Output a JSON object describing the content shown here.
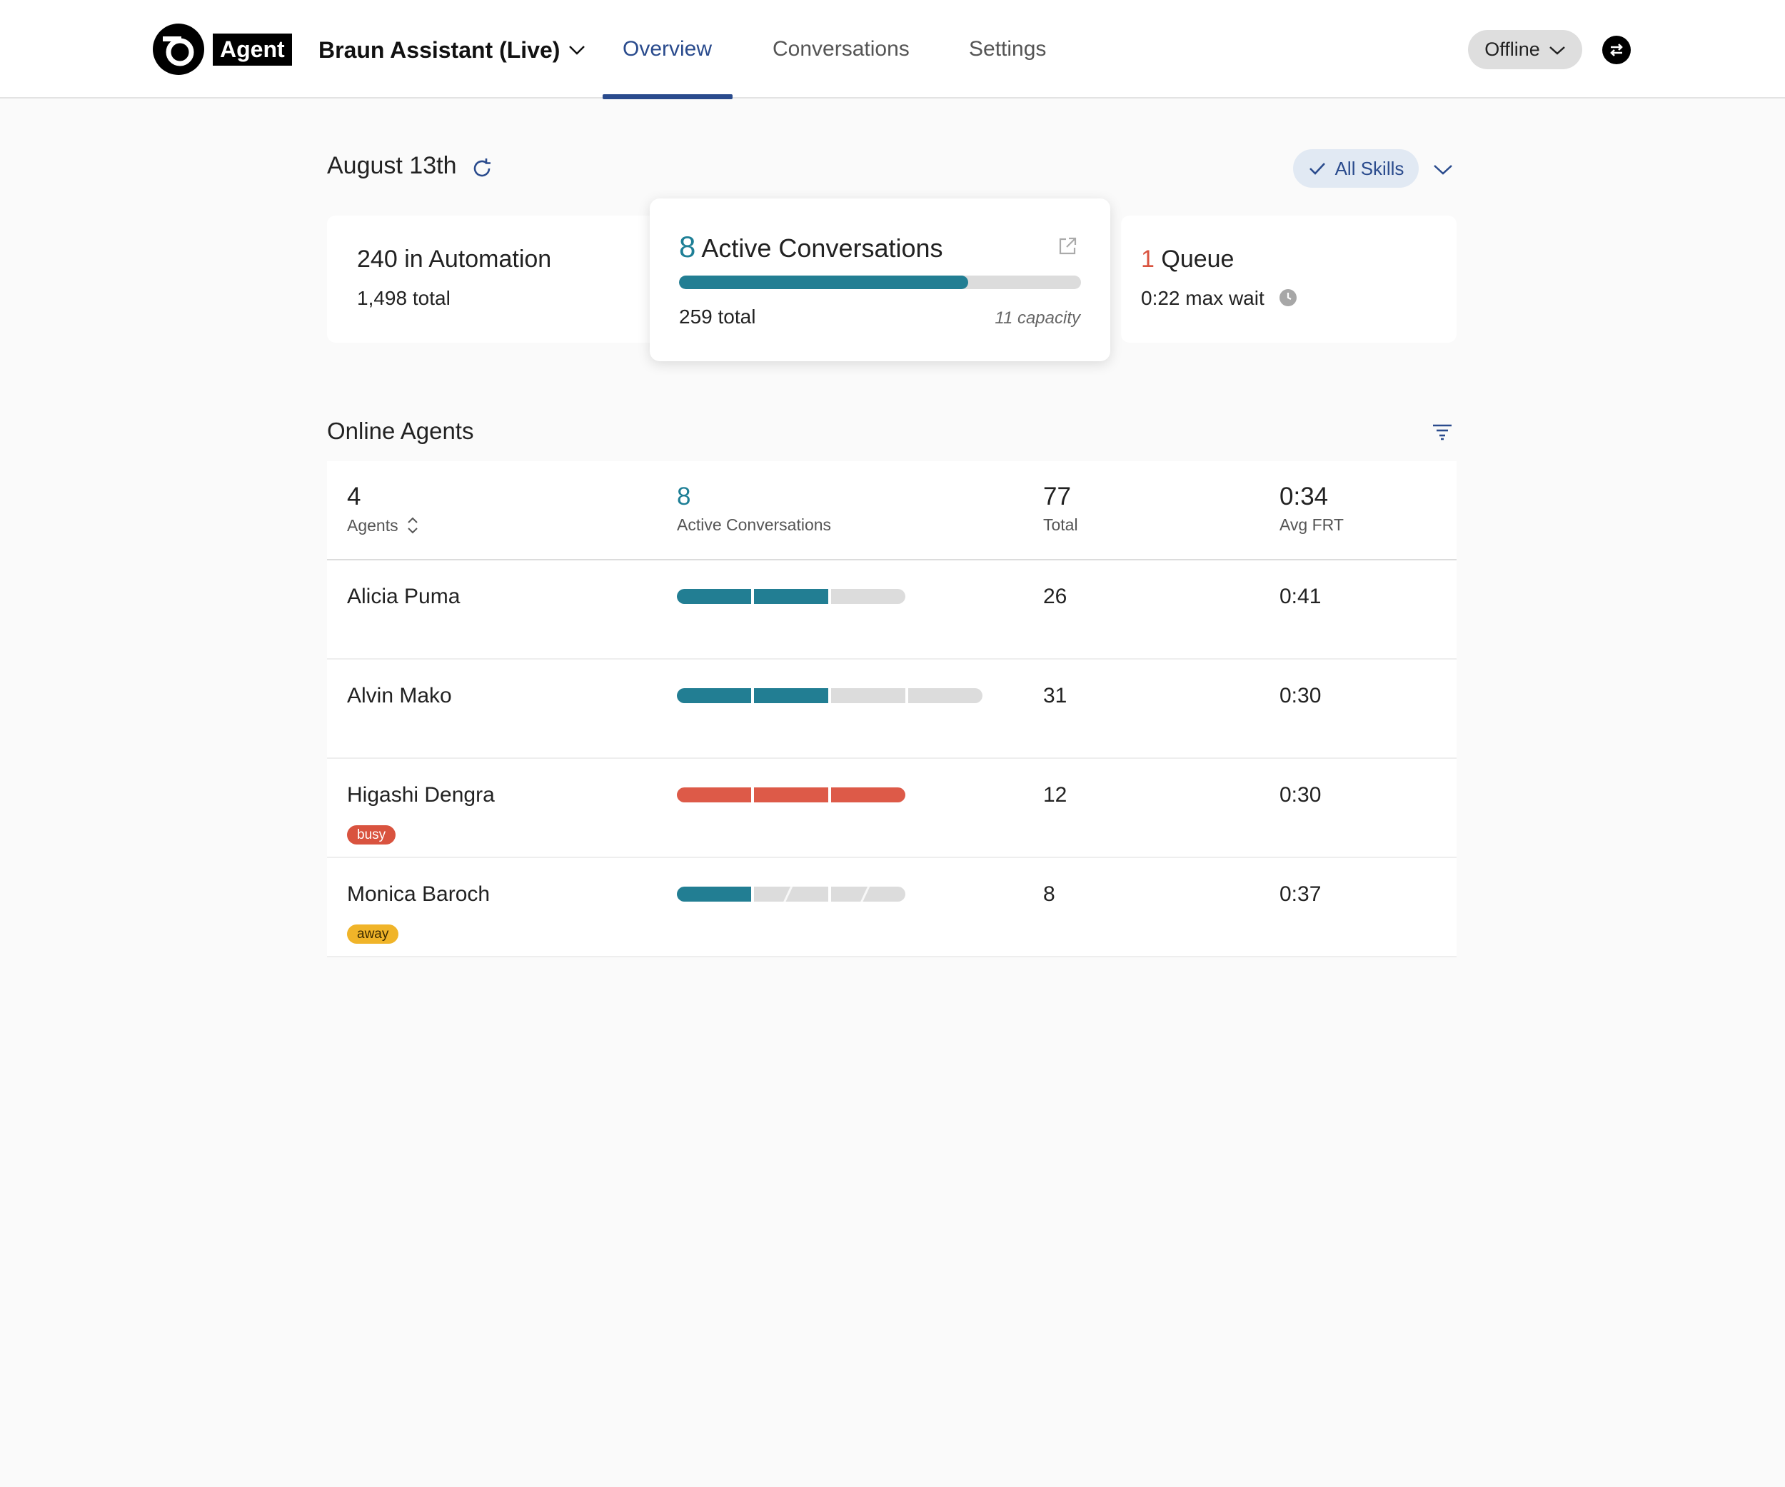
{
  "app": {
    "brand": "Agent",
    "bot_name": "Braun Assistant (Live)",
    "tabs": [
      {
        "label": "Overview",
        "active": true
      },
      {
        "label": "Conversations",
        "active": false
      },
      {
        "label": "Settings",
        "active": false
      }
    ],
    "status": "Offline"
  },
  "toolbar": {
    "date": "August 13th",
    "skills_filter": "All Skills"
  },
  "stats": {
    "automation": {
      "count": "240",
      "label": "in Automation",
      "total": "1,498",
      "total_label": "total"
    },
    "active": {
      "count": "8",
      "label": "Active Conversations",
      "total": "259",
      "total_label": "total",
      "capacity": "11 capacity",
      "fill_fraction": 0.72
    },
    "queue": {
      "count": "1",
      "label": "Queue",
      "wait": "0:22",
      "wait_label": "max wait"
    }
  },
  "agents_section": {
    "title": "Online Agents",
    "summary": {
      "agents_count": "4",
      "agents_label": "Agents",
      "active_count": "8",
      "active_label": "Active Conversations",
      "total_count": "77",
      "total_label": "Total",
      "frt": "0:34",
      "frt_label": "Avg FRT"
    },
    "rows": [
      {
        "name": "Alicia Puma",
        "badge": "",
        "total": "26",
        "frt": "0:41",
        "segments": [
          "teal",
          "teal",
          "empty"
        ]
      },
      {
        "name": "Alvin Mako",
        "badge": "",
        "total": "31",
        "frt": "0:30",
        "segments": [
          "teal",
          "teal",
          "empty",
          "empty"
        ]
      },
      {
        "name": "Higashi Dengra",
        "badge": "busy",
        "total": "12",
        "frt": "0:30",
        "segments": [
          "red",
          "red",
          "red"
        ]
      },
      {
        "name": "Monica Baroch",
        "badge": "away",
        "total": "8",
        "frt": "0:37",
        "segments": [
          "teal",
          "hatched",
          "hatched"
        ]
      }
    ]
  },
  "colors": {
    "accent": "#2a4b8d",
    "teal": "#227e93",
    "red": "#dd5a48",
    "away": "#f0b429"
  }
}
